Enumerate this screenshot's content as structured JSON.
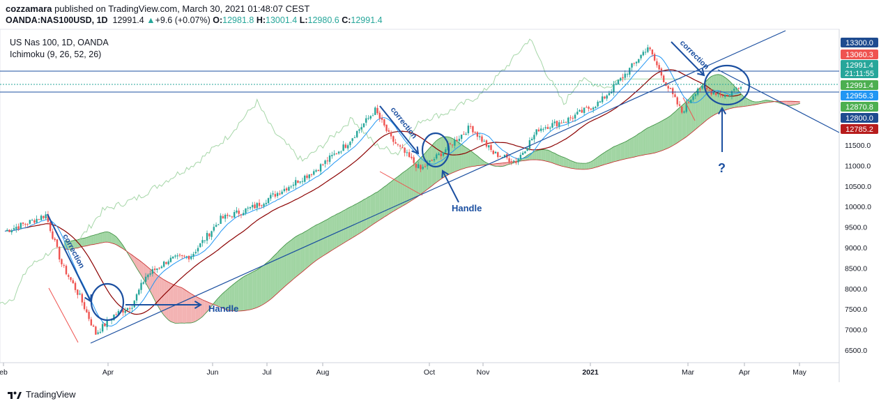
{
  "header": {
    "author": "cozzamara",
    "published_text": "published on TradingView.com, March 30, 2021 01:48:07 CEST",
    "symbol": "OANDA:NAS100USD, 1D",
    "last": "12991.4",
    "change_arrow": "▲",
    "change": "+9.6 (+0.07%)",
    "o_label": "O:",
    "o_value": "12981.8",
    "h_label": "H:",
    "h_value": "13001.4",
    "l_label": "L:",
    "l_value": "12980.6",
    "c_label": "C:",
    "c_value": "12991.4"
  },
  "legend": {
    "title": "US Nas 100, 1D, OANDA",
    "indicator": "Ichimoku (9, 26, 52, 26)"
  },
  "footer": {
    "brand": "TradingView",
    "logo_icon": "tradingview-logo-icon"
  },
  "chart_data": {
    "type": "candlestick",
    "title": "US Nas 100, 1D, OANDA",
    "indicator": "Ichimoku (9, 26, 52, 26)",
    "x_ticks": [
      "eb",
      "Apr",
      "Jun",
      "Jul",
      "Aug",
      "Oct",
      "Nov",
      "2021",
      "Mar",
      "Apr",
      "May"
    ],
    "y_ticks": [
      6500,
      7000,
      7500,
      8000,
      8500,
      9000,
      9500,
      10000,
      10500,
      11000,
      11500
    ],
    "ylim": [
      6300,
      13600
    ],
    "price_tags": [
      {
        "value": "13300.0",
        "bg": "#1e4b8f"
      },
      {
        "value": "13060.3",
        "bg": "#ef5350"
      },
      {
        "value": "12991.4",
        "value2": "21:11:55",
        "bg": "#26a69a"
      },
      {
        "value": "12991.4",
        "bg": "#4caf50"
      },
      {
        "value": "12956.3",
        "bg": "#2196f3"
      },
      {
        "value": "12870.8",
        "bg": "#4caf50"
      },
      {
        "value": "12800.0",
        "bg": "#1e4b8f"
      },
      {
        "value": "12785.2",
        "bg": "#b71c1c"
      }
    ],
    "annotations": {
      "correction": "correction",
      "handle": "Handle",
      "question": "?"
    },
    "colors": {
      "up": "#26a69a",
      "down": "#ef5350",
      "cloud_bull": "#81c784",
      "cloud_bear": "#ef9a9a",
      "tenkan": "#2196f3",
      "kijun": "#8b0000",
      "lagging": "#a5d6a7",
      "drawing": "#1b4fa0"
    },
    "key_points": [
      {
        "x": "Feb",
        "y": 9700
      },
      {
        "x": "Mar",
        "y": 6700
      },
      {
        "x": "Jun",
        "y": 9900
      },
      {
        "x": "Sep",
        "y": 12400
      },
      {
        "x": "Sep",
        "y": 10900
      },
      {
        "x": "Oct",
        "y": 11900
      },
      {
        "x": "Nov",
        "y": 11000
      },
      {
        "x": "Feb 2021",
        "y": 13900
      },
      {
        "x": "Mar 2021",
        "y": 12200
      },
      {
        "x": "Mar 2021",
        "y": 12991.4
      }
    ]
  }
}
